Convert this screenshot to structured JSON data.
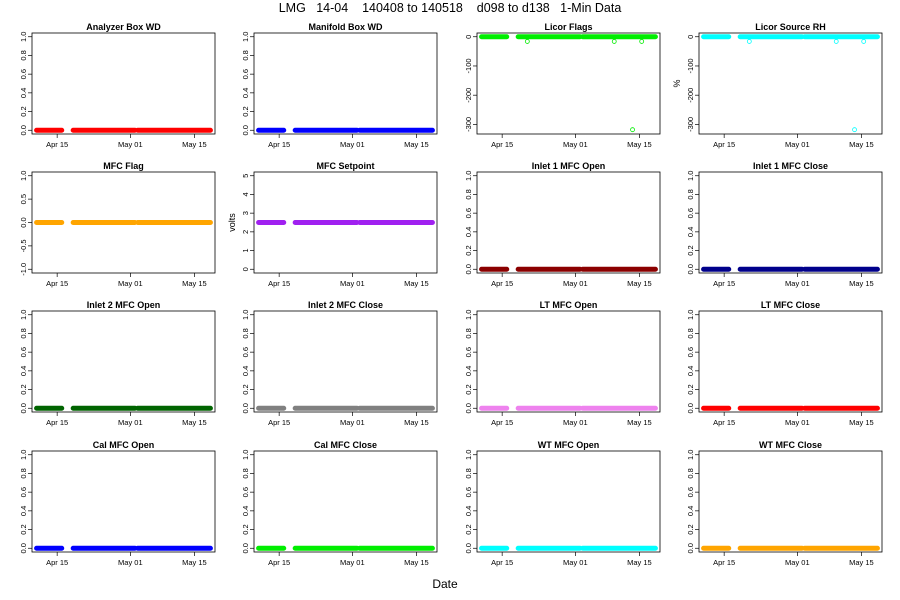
{
  "title": "LMG   14-04    140408 to 140518    d098 to d138   1-Min Data",
  "xlabel": "Date",
  "chart_data": [
    {
      "type": "scatter",
      "title": "Analyzer Box WD",
      "ylabel": "",
      "color": "#ff0000",
      "ylim": [
        0,
        1
      ],
      "yticks": [
        "0.0",
        "0.2",
        "0.4",
        "0.6",
        "0.8",
        "1.0"
      ],
      "ytick_values": [
        0,
        0.2,
        0.4,
        0.6,
        0.8,
        1.0
      ],
      "xticks": [
        "Apr 15",
        "May 01",
        "May 15"
      ],
      "value": 0,
      "outliers": []
    },
    {
      "type": "scatter",
      "title": "Manifold Box WD",
      "ylabel": "",
      "color": "#0000ff",
      "ylim": [
        0,
        1
      ],
      "yticks": [
        "0.0",
        "0.2",
        "0.4",
        "0.6",
        "0.8",
        "1.0"
      ],
      "ytick_values": [
        0,
        0.2,
        0.4,
        0.6,
        0.8,
        1.0
      ],
      "xticks": [
        "Apr 15",
        "May 01",
        "May 15"
      ],
      "value": 0,
      "outliers": []
    },
    {
      "type": "scatter",
      "title": "Licor Flags",
      "ylabel": "",
      "color": "#00ee00",
      "ylim": [
        -320,
        0
      ],
      "yticks": [
        "0",
        "-100",
        "-200",
        "-300"
      ],
      "ytick_values": [
        0,
        -100,
        -200,
        -300
      ],
      "xticks": [
        "Apr 15",
        "May 01",
        "May 15"
      ],
      "value": 0,
      "outliers": [
        [
          12.5,
          -16
        ],
        [
          31.5,
          -16
        ],
        [
          37.5,
          -16
        ],
        [
          35.5,
          -318
        ]
      ]
    },
    {
      "type": "scatter",
      "title": "Licor Source RH",
      "ylabel": "%",
      "color": "#00ffff",
      "ylim": [
        -320,
        0
      ],
      "yticks": [
        "0",
        "-100",
        "-200",
        "-300"
      ],
      "ytick_values": [
        0,
        -100,
        -200,
        -300
      ],
      "xticks": [
        "Apr 15",
        "May 01",
        "May 15"
      ],
      "value": 0,
      "outliers": [
        [
          12.5,
          -16
        ],
        [
          31.5,
          -16
        ],
        [
          37.5,
          -16
        ],
        [
          35.5,
          -318
        ]
      ]
    },
    {
      "type": "scatter",
      "title": "MFC Flag",
      "ylabel": "",
      "color": "#ffa500",
      "ylim": [
        -1,
        1
      ],
      "yticks": [
        "-1.0",
        "-0.5",
        "0.0",
        "0.5",
        "1.0"
      ],
      "ytick_values": [
        -1,
        -0.5,
        0,
        0.5,
        1
      ],
      "xticks": [
        "Apr 15",
        "May 01",
        "May 15"
      ],
      "value": 0,
      "outliers": []
    },
    {
      "type": "scatter",
      "title": "MFC Setpoint",
      "ylabel": "volts",
      "color": "#a020f0",
      "ylim": [
        0,
        5
      ],
      "yticks": [
        "0",
        "1",
        "2",
        "3",
        "4",
        "5"
      ],
      "ytick_values": [
        0,
        1,
        2,
        3,
        4,
        5
      ],
      "xticks": [
        "Apr 15",
        "May 01",
        "May 15"
      ],
      "value": 2.5,
      "outliers": []
    },
    {
      "type": "scatter",
      "title": "Inlet 1 MFC Open",
      "ylabel": "",
      "color": "#8b0000",
      "ylim": [
        0,
        1
      ],
      "yticks": [
        "0.0",
        "0.2",
        "0.4",
        "0.6",
        "0.8",
        "1.0"
      ],
      "ytick_values": [
        0,
        0.2,
        0.4,
        0.6,
        0.8,
        1.0
      ],
      "xticks": [
        "Apr 15",
        "May 01",
        "May 15"
      ],
      "value": 0,
      "outliers": []
    },
    {
      "type": "scatter",
      "title": "Inlet 1 MFC Close",
      "ylabel": "",
      "color": "#00008b",
      "ylim": [
        0,
        1
      ],
      "yticks": [
        "0.0",
        "0.2",
        "0.4",
        "0.6",
        "0.8",
        "1.0"
      ],
      "ytick_values": [
        0,
        0.2,
        0.4,
        0.6,
        0.8,
        1.0
      ],
      "xticks": [
        "Apr 15",
        "May 01",
        "May 15"
      ],
      "value": 0,
      "outliers": []
    },
    {
      "type": "scatter",
      "title": "Inlet 2 MFC Open",
      "ylabel": "",
      "color": "#006400",
      "ylim": [
        0,
        1
      ],
      "yticks": [
        "0.0",
        "0.2",
        "0.4",
        "0.6",
        "0.8",
        "1.0"
      ],
      "ytick_values": [
        0,
        0.2,
        0.4,
        0.6,
        0.8,
        1.0
      ],
      "xticks": [
        "Apr 15",
        "May 01",
        "May 15"
      ],
      "value": 0,
      "outliers": []
    },
    {
      "type": "scatter",
      "title": "Inlet 2 MFC Close",
      "ylabel": "",
      "color": "#808080",
      "ylim": [
        0,
        1
      ],
      "yticks": [
        "0.0",
        "0.2",
        "0.4",
        "0.6",
        "0.8",
        "1.0"
      ],
      "ytick_values": [
        0,
        0.2,
        0.4,
        0.6,
        0.8,
        1.0
      ],
      "xticks": [
        "Apr 15",
        "May 01",
        "May 15"
      ],
      "value": 0,
      "outliers": []
    },
    {
      "type": "scatter",
      "title": "LT MFC Open",
      "ylabel": "",
      "color": "#ee82ee",
      "ylim": [
        0,
        1
      ],
      "yticks": [
        "0.0",
        "0.2",
        "0.4",
        "0.6",
        "0.8",
        "1.0"
      ],
      "ytick_values": [
        0,
        0.2,
        0.4,
        0.6,
        0.8,
        1.0
      ],
      "xticks": [
        "Apr 15",
        "May 01",
        "May 15"
      ],
      "value": 0,
      "outliers": []
    },
    {
      "type": "scatter",
      "title": "LT MFC Close",
      "ylabel": "",
      "color": "#ff0000",
      "ylim": [
        0,
        1
      ],
      "yticks": [
        "0.0",
        "0.2",
        "0.4",
        "0.6",
        "0.8",
        "1.0"
      ],
      "ytick_values": [
        0,
        0.2,
        0.4,
        0.6,
        0.8,
        1.0
      ],
      "xticks": [
        "Apr 15",
        "May 01",
        "May 15"
      ],
      "value": 0,
      "outliers": []
    },
    {
      "type": "scatter",
      "title": "Cal MFC Open",
      "ylabel": "",
      "color": "#0000ff",
      "ylim": [
        0,
        1
      ],
      "yticks": [
        "0.0",
        "0.2",
        "0.4",
        "0.6",
        "0.8",
        "1.0"
      ],
      "ytick_values": [
        0,
        0.2,
        0.4,
        0.6,
        0.8,
        1.0
      ],
      "xticks": [
        "Apr 15",
        "May 01",
        "May 15"
      ],
      "value": 0,
      "outliers": []
    },
    {
      "type": "scatter",
      "title": "Cal MFC Close",
      "ylabel": "",
      "color": "#00ee00",
      "ylim": [
        0,
        1
      ],
      "yticks": [
        "0.0",
        "0.2",
        "0.4",
        "0.6",
        "0.8",
        "1.0"
      ],
      "ytick_values": [
        0,
        0.2,
        0.4,
        0.6,
        0.8,
        1.0
      ],
      "xticks": [
        "Apr 15",
        "May 01",
        "May 15"
      ],
      "value": 0,
      "outliers": []
    },
    {
      "type": "scatter",
      "title": "WT MFC Open",
      "ylabel": "",
      "color": "#00ffff",
      "ylim": [
        0,
        1
      ],
      "yticks": [
        "0.0",
        "0.2",
        "0.4",
        "0.6",
        "0.8",
        "1.0"
      ],
      "ytick_values": [
        0,
        0.2,
        0.4,
        0.6,
        0.8,
        1.0
      ],
      "xticks": [
        "Apr 15",
        "May 01",
        "May 15"
      ],
      "value": 0,
      "outliers": []
    },
    {
      "type": "scatter",
      "title": "WT MFC Close",
      "ylabel": "",
      "color": "#ffa500",
      "ylim": [
        0,
        1
      ],
      "yticks": [
        "0.0",
        "0.2",
        "0.4",
        "0.6",
        "0.8",
        "1.0"
      ],
      "ytick_values": [
        0,
        0.2,
        0.4,
        0.6,
        0.8,
        1.0
      ],
      "xticks": [
        "Apr 15",
        "May 01",
        "May 15"
      ],
      "value": 0,
      "outliers": []
    }
  ]
}
